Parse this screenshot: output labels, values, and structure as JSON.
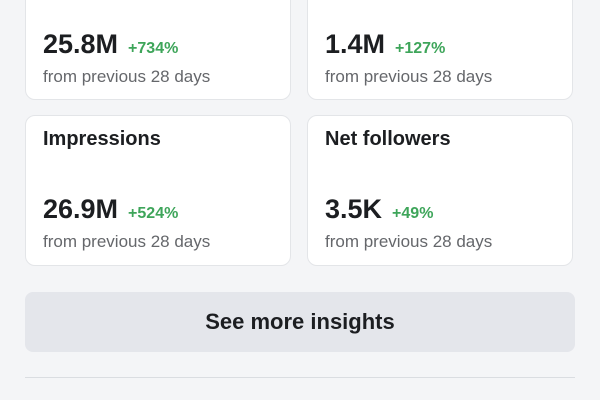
{
  "cards": [
    {
      "value": "25.8M",
      "change": "+734%",
      "note": "from previous 28 days"
    },
    {
      "value": "1.4M",
      "change": "+127%",
      "note": "from previous 28 days"
    },
    {
      "title": "Impressions",
      "value": "26.9M",
      "change": "+524%",
      "note": "from previous 28 days"
    },
    {
      "title": "Net followers",
      "value": "3.5K",
      "change": "+49%",
      "note": "from previous 28 days"
    }
  ],
  "button": {
    "label": "See more insights"
  }
}
